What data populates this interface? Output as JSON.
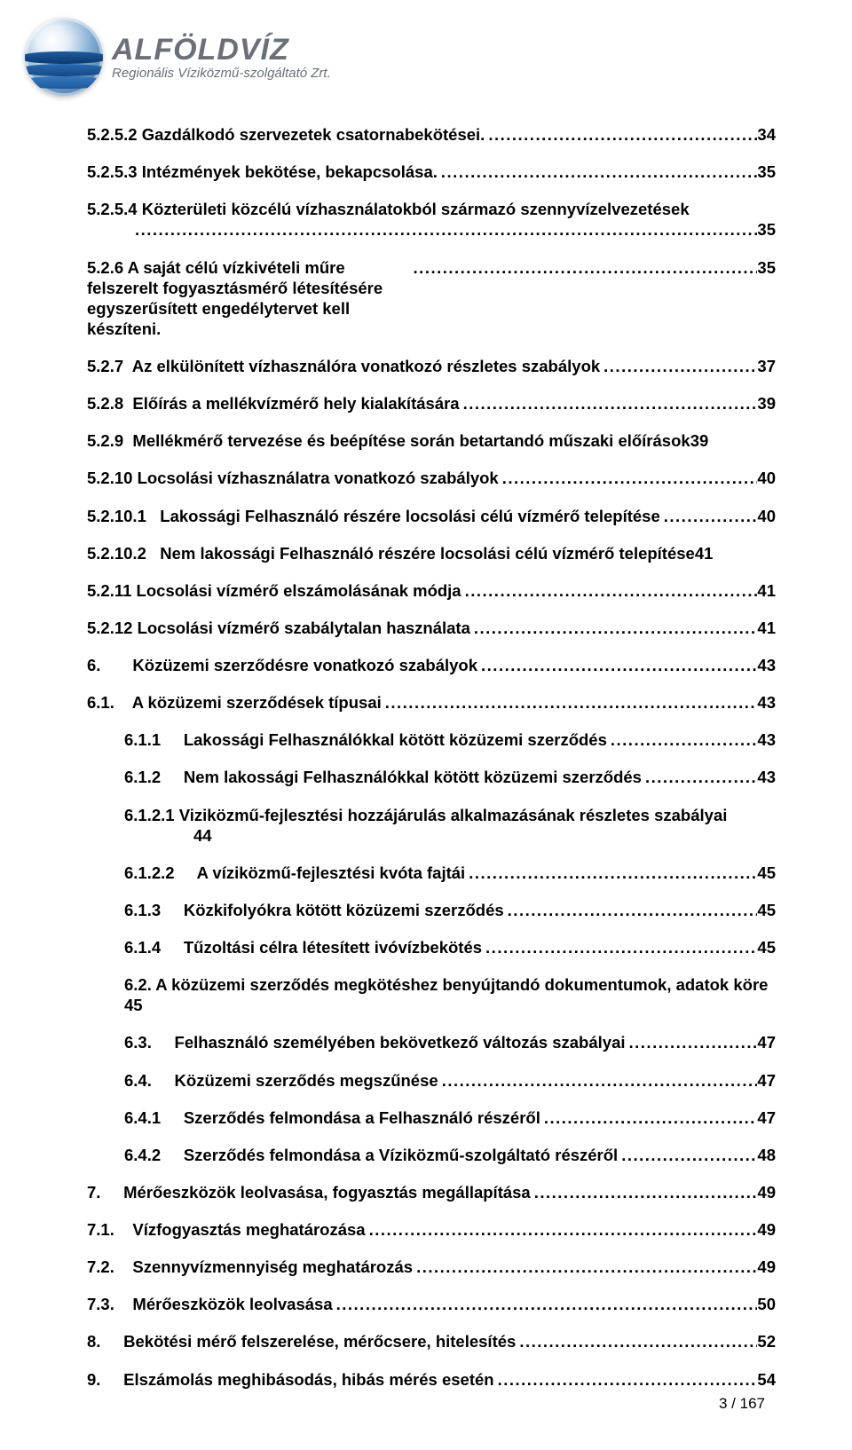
{
  "logo": {
    "brand": "ALFÖLDVÍZ",
    "tagline": "Regionális Víziközmű-szolgáltató Zrt."
  },
  "footer": {
    "page": "3 / 167"
  },
  "toc": [
    {
      "label": "5.2.5.2 Gazdálkodó szervezetek csatornabekötései.",
      "page": "34",
      "indent": 0
    },
    {
      "label": "5.2.5.3 Intézmények bekötése, bekapcsolása.",
      "page": "35",
      "indent": 0
    },
    {
      "label": "5.2.5.4 Közterületi közcélú vízhasználatokból származó szennyvízelvezetések\n",
      "page": "35",
      "indent": 0,
      "multiline": true
    },
    {
      "label": "5.2.6  A saját célú vízkivételi műre felszerelt fogyasztásmérő létesítésére egyszerűsített engedélytervet kell készíteni.",
      "page": "35",
      "indent": 0,
      "wrap": true
    },
    {
      "label": "5.2.7  Az elkülönített vízhasználóra vonatkozó részletes szabályok",
      "page": "37",
      "indent": 0
    },
    {
      "label": "5.2.8  Előírás a mellékvízmérő hely kialakítására",
      "page": "39",
      "indent": 0
    },
    {
      "label": "5.2.9  Mellékmérő tervezése és beépítése során betartandó műszaki előírások",
      "page": "39",
      "indent": 0,
      "noleader": true
    },
    {
      "label": "5.2.10 Locsolási vízhasználatra vonatkozó szabályok",
      "page": "40",
      "indent": 0
    },
    {
      "label": "5.2.10.1   Lakossági Felhasználó részére locsolási célú vízmérő telepítése",
      "page": "40",
      "indent": 0
    },
    {
      "label": "5.2.10.2   Nem lakossági Felhasználó részére locsolási célú vízmérő telepítése",
      "page": "41",
      "indent": 0,
      "noleader": true
    },
    {
      "label": "5.2.11 Locsolási vízmérő elszámolásának módja",
      "page": "41",
      "indent": 0
    },
    {
      "label": "5.2.12 Locsolási vízmérő szabálytalan használata",
      "page": "41",
      "indent": 0
    },
    {
      "label": "6.       Közüzemi szerződésre vonatkozó szabályok",
      "page": "43",
      "indent": 0
    },
    {
      "label": "6.1.    A közüzemi szerződések típusai",
      "page": "43",
      "indent": 0
    },
    {
      "label": "6.1.1     Lakossági Felhasználókkal kötött közüzemi szerződés",
      "page": "43",
      "indent": 1
    },
    {
      "label": "6.1.2     Nem lakossági Felhasználókkal kötött közüzemi szerződés",
      "page": "43",
      "indent": 1
    },
    {
      "label": "6.1.2.1     Viziközmű-fejlesztési hozzájárulás alkalmazásának részletes szabályai",
      "sub": "44",
      "indent": 1,
      "subline": true
    },
    {
      "label": "6.1.2.2     A víziközmű-fejlesztési kvóta fajtái",
      "page": "45",
      "indent": 1
    },
    {
      "label": "6.1.3     Közkifolyókra kötött közüzemi szerződés",
      "page": "45",
      "indent": 1
    },
    {
      "label": "6.1.4     Tűzoltási célra létesített ivóvízbekötés",
      "page": "45",
      "indent": 1
    },
    {
      "label": "6.2.   A közüzemi szerződés megkötéshez benyújtandó dokumentumok, adatok köre   45",
      "indent": 1,
      "nopage": true
    },
    {
      "label": "6.3.     Felhasználó személyében bekövetkező változás szabályai",
      "page": "47",
      "indent": 1
    },
    {
      "label": "6.4.     Közüzemi szerződés megszűnése",
      "page": "47",
      "indent": 1
    },
    {
      "label": "6.4.1     Szerződés felmondása a Felhasználó részéről",
      "page": "47",
      "indent": 1
    },
    {
      "label": "6.4.2     Szerződés felmondása a Víziközmű-szolgáltató részéről",
      "page": "48",
      "indent": 1
    },
    {
      "label": "7.     Mérőeszközök leolvasása, fogyasztás megállapítása",
      "page": "49",
      "indent": 0
    },
    {
      "label": "7.1.    Vízfogyasztás meghatározása",
      "page": "49",
      "indent": 0
    },
    {
      "label": "7.2.    Szennyvízmennyiség meghatározás",
      "page": "49",
      "indent": 0
    },
    {
      "label": "7.3.    Mérőeszközök leolvasása",
      "page": "50",
      "indent": 0
    },
    {
      "label": "8.     Bekötési mérő felszerelése, mérőcsere, hitelesítés",
      "page": "52",
      "indent": 0
    },
    {
      "label": "9.     Elszámolás meghibásodás, hibás mérés esetén",
      "page": "54",
      "indent": 0
    }
  ]
}
